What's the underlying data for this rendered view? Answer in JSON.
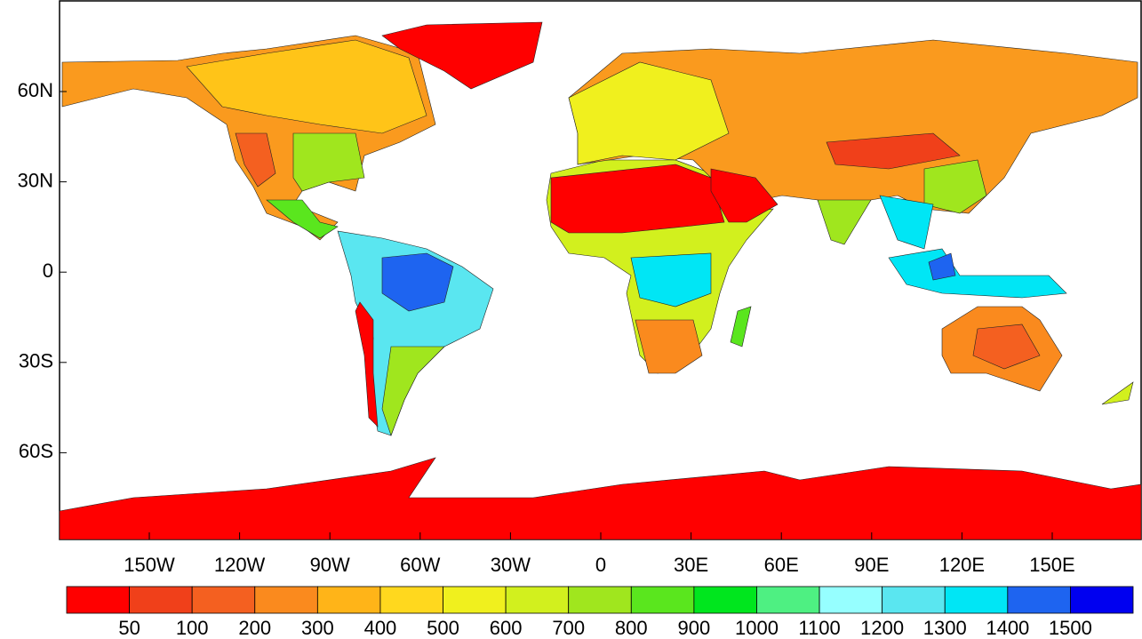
{
  "map": {
    "lat_ticks": [
      "60N",
      "30N",
      "0",
      "30S",
      "60S"
    ],
    "lon_ticks": [
      "150W",
      "120W",
      "90W",
      "60W",
      "30W",
      "0",
      "30E",
      "60E",
      "90E",
      "120E",
      "150E"
    ],
    "colorbar": {
      "levels": [
        50,
        100,
        200,
        300,
        400,
        500,
        600,
        700,
        800,
        900,
        1000,
        1100,
        1200,
        1300,
        1400,
        1500
      ],
      "colors": [
        "#ff0000",
        "#f0401a",
        "#f46020",
        "#fa8a1e",
        "#ffb418",
        "#ffd81e",
        "#f0f01e",
        "#d2f01e",
        "#a0e61e",
        "#5ae61e",
        "#00e61e",
        "#4ef082",
        "#96ffff",
        "#5ae6f0",
        "#00e6f5",
        "#1e64f0",
        "#0000f0"
      ]
    }
  }
}
